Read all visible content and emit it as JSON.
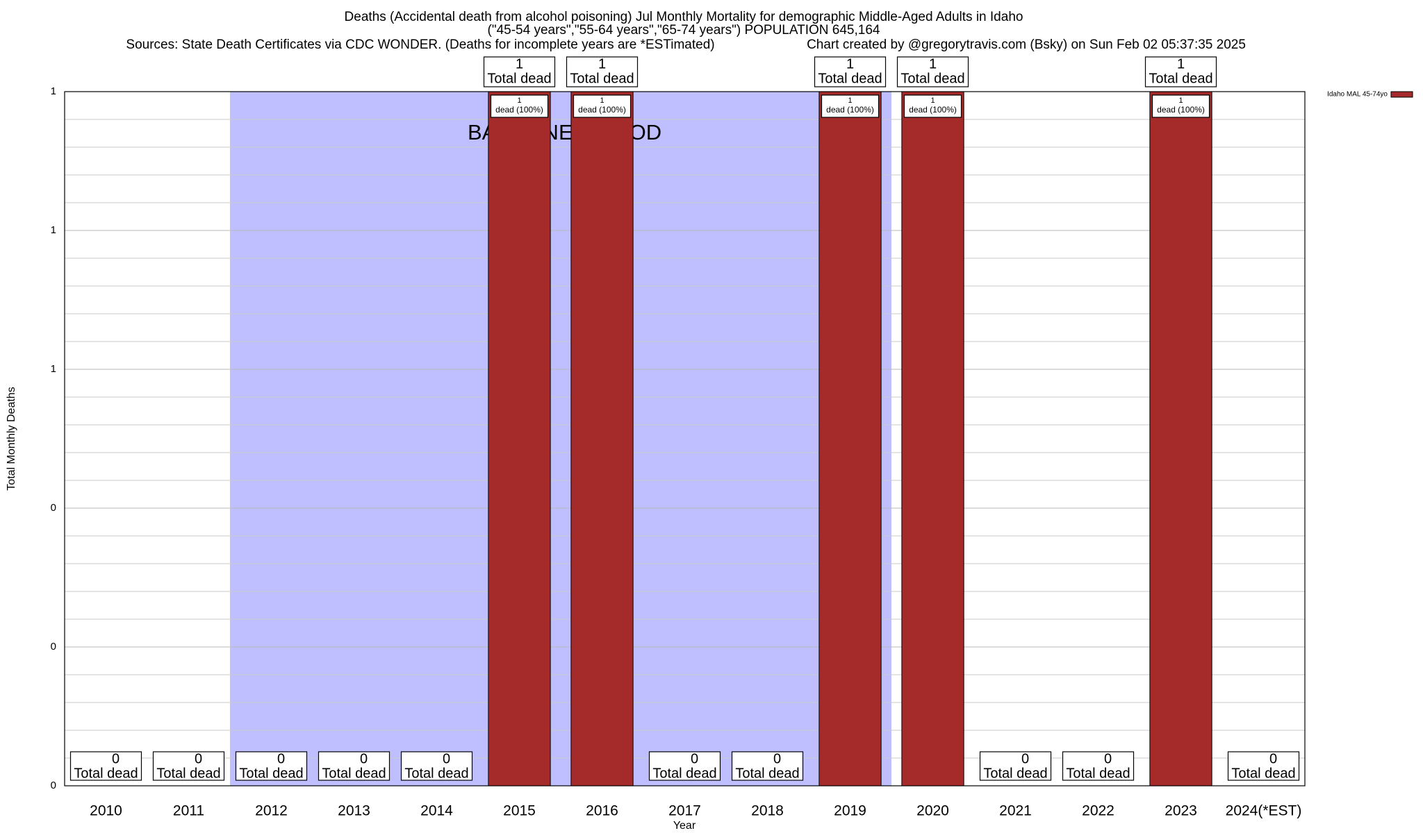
{
  "chart_data": {
    "type": "bar",
    "title": "Deaths (Accidental death from alcohol poisoning) Jul Monthly Mortality for demographic Middle-Aged Adults in Idaho",
    "subtitle": "(\"45-54 years\",\"55-64 years\",\"65-74 years\") POPULATION 645,164",
    "source": "Sources: State Death Certificates via CDC WONDER. (Deaths for incomplete years are *ESTimated)",
    "credit": "Chart created by @gregorytravis.com (Bsky) on Sun Feb 02 05:37:35 2025",
    "x_label": "Year",
    "y_label": "Total Monthly Deaths",
    "categories": [
      "2010",
      "2011",
      "2012",
      "2013",
      "2014",
      "2015",
      "2016",
      "2017",
      "2018",
      "2019",
      "2020",
      "2021",
      "2022",
      "2023",
      "2024(*EST)"
    ],
    "series": [
      {
        "name": "Idaho MAL 45-74yo",
        "color": "#a52a2a",
        "values": [
          0,
          0,
          0,
          0,
          0,
          1,
          1,
          0,
          0,
          1,
          1,
          0,
          0,
          1,
          0
        ]
      }
    ],
    "total_label": "Total dead",
    "share_label": "dead (100%)",
    "baseline": {
      "label": "BASELINE PERIOD",
      "start": "2012",
      "end": "2019",
      "color": "#bfbfff"
    },
    "ylim": [
      0,
      1
    ],
    "yticks": [
      0,
      {
        "value": 0.2,
        "label": "0"
      },
      {
        "value": 0.4,
        "label": "0"
      },
      {
        "value": 0.6,
        "label": "1"
      },
      {
        "value": 0.8,
        "label": "1"
      },
      1
    ],
    "minor_yticks": [
      0.04,
      0.08,
      0.12,
      0.16,
      0.24,
      0.28,
      0.32,
      0.36,
      0.44,
      0.48,
      0.52,
      0.56,
      0.64,
      0.68,
      0.72,
      0.76,
      0.84,
      0.88,
      0.92,
      0.96
    ],
    "grid": true,
    "legend": "top-right"
  }
}
